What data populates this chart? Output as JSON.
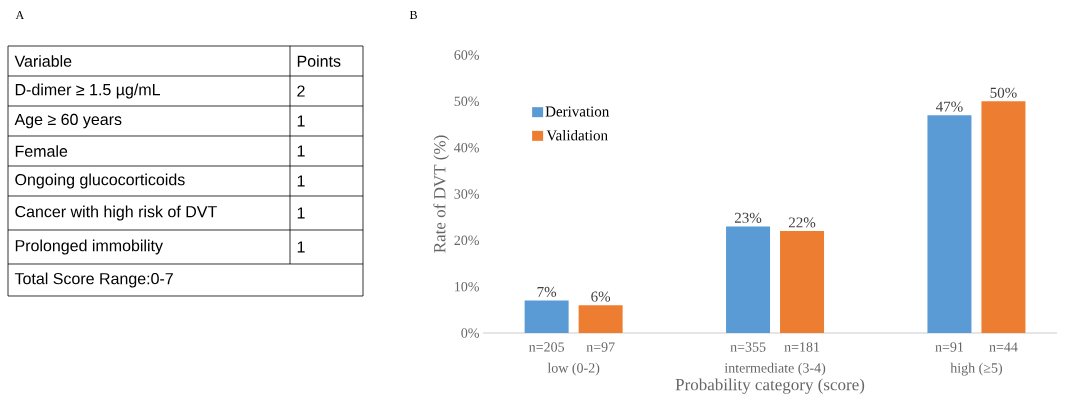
{
  "chart_data": [
    {
      "type": "other",
      "title": "A",
      "annotations": [
        "Variable",
        "Points",
        "D-dimer ≥ 1.5 µg/mL",
        "2",
        "Age ≥ 60 years",
        "1",
        "Female",
        "1",
        "Ongoing glucocorticoids",
        "1",
        "Cancer with high risk of DVT",
        "1",
        "Prolonged immobility",
        "1",
        "Total Score Range:0-7"
      ]
    },
    {
      "type": "bar",
      "title": "B",
      "xlabel": "Probability category (score)",
      "ylabel": "Rate of DVT (%)",
      "categories": [
        "low (0-2)",
        "intermediate (3-4)",
        "high (≥5)"
      ],
      "series": [
        {
          "name": "Derivation",
          "color": "#5b9bd5",
          "values": [
            7,
            23,
            47
          ],
          "value_labels": [
            "7%",
            "23%",
            "47%"
          ]
        },
        {
          "name": "Validation",
          "color": "#ed7d31",
          "values": [
            6,
            22,
            50
          ],
          "value_labels": [
            "6%",
            "22%",
            "50%"
          ]
        }
      ],
      "ylim": [
        0,
        60
      ],
      "yticks": [
        {
          "value": 0,
          "label": "0%"
        },
        {
          "value": 10,
          "label": "10%"
        },
        {
          "value": 20,
          "label": "20%"
        },
        {
          "value": 30,
          "label": "30%"
        },
        {
          "value": 40,
          "label": "40%"
        },
        {
          "value": 50,
          "label": "50%"
        },
        {
          "value": 60,
          "label": "60%"
        }
      ],
      "legend": "top left",
      "grid": false,
      "annotations": [
        "n=205",
        "n=97",
        "n=355",
        "n=181",
        "n=91",
        "n=44"
      ]
    }
  ]
}
